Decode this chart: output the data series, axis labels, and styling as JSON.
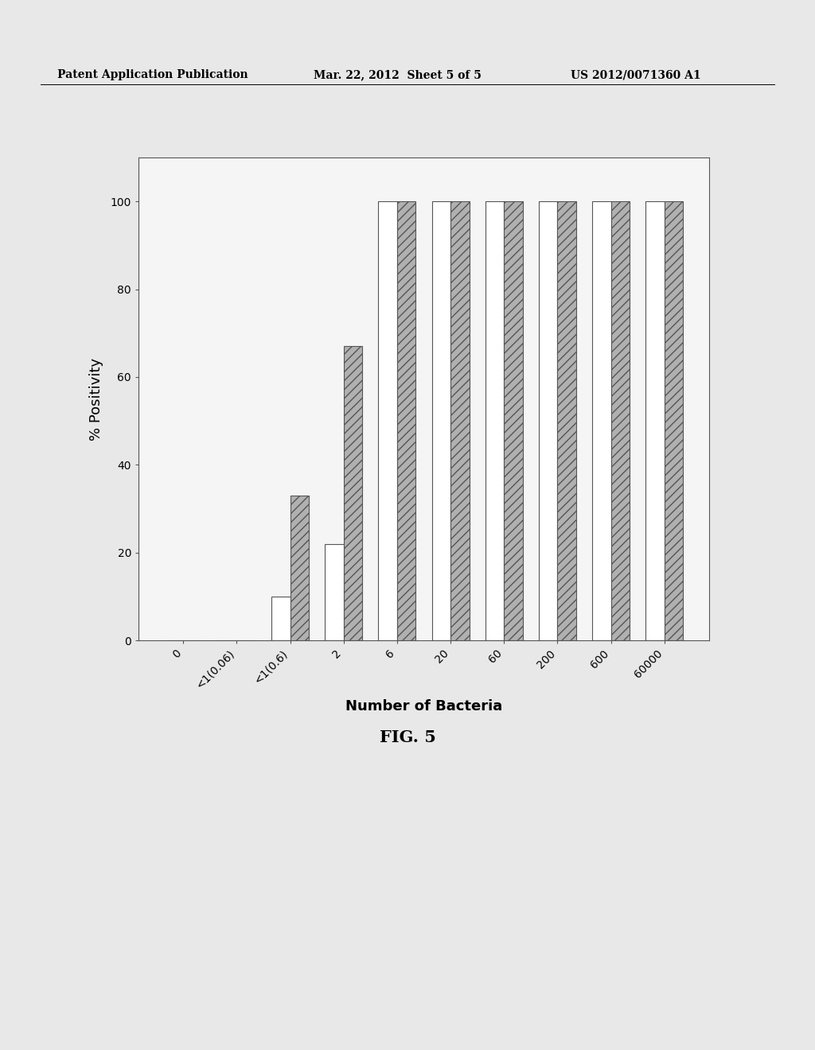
{
  "categories": [
    "0",
    "<1(0.06)",
    "<1(0.6)",
    "2",
    "6",
    "20",
    "60",
    "200",
    "600",
    "60000"
  ],
  "white_bars": [
    0,
    0,
    10,
    22,
    100,
    100,
    100,
    100,
    100,
    100
  ],
  "hatched_bars": [
    0,
    0,
    33,
    67,
    100,
    100,
    100,
    100,
    100,
    100
  ],
  "ylabel": "% Positivity",
  "xlabel": "Number of Bacteria",
  "ylim": [
    0,
    110
  ],
  "yticks": [
    0,
    20,
    40,
    60,
    80,
    100
  ],
  "fig_caption": "FIG. 5",
  "header_left": "Patent Application Publication",
  "header_mid": "Mar. 22, 2012  Sheet 5 of 5",
  "header_right": "US 2012/0071360 A1",
  "bar_width": 0.35,
  "white_bar_color": "#ffffff",
  "hatched_bar_color": "#b0b0b0",
  "hatch_pattern": "///",
  "edge_color": "#555555",
  "background_color": "#e8e8e8",
  "font_size_axis_label": 13,
  "font_size_tick": 10,
  "font_size_header": 10,
  "font_size_caption": 15
}
